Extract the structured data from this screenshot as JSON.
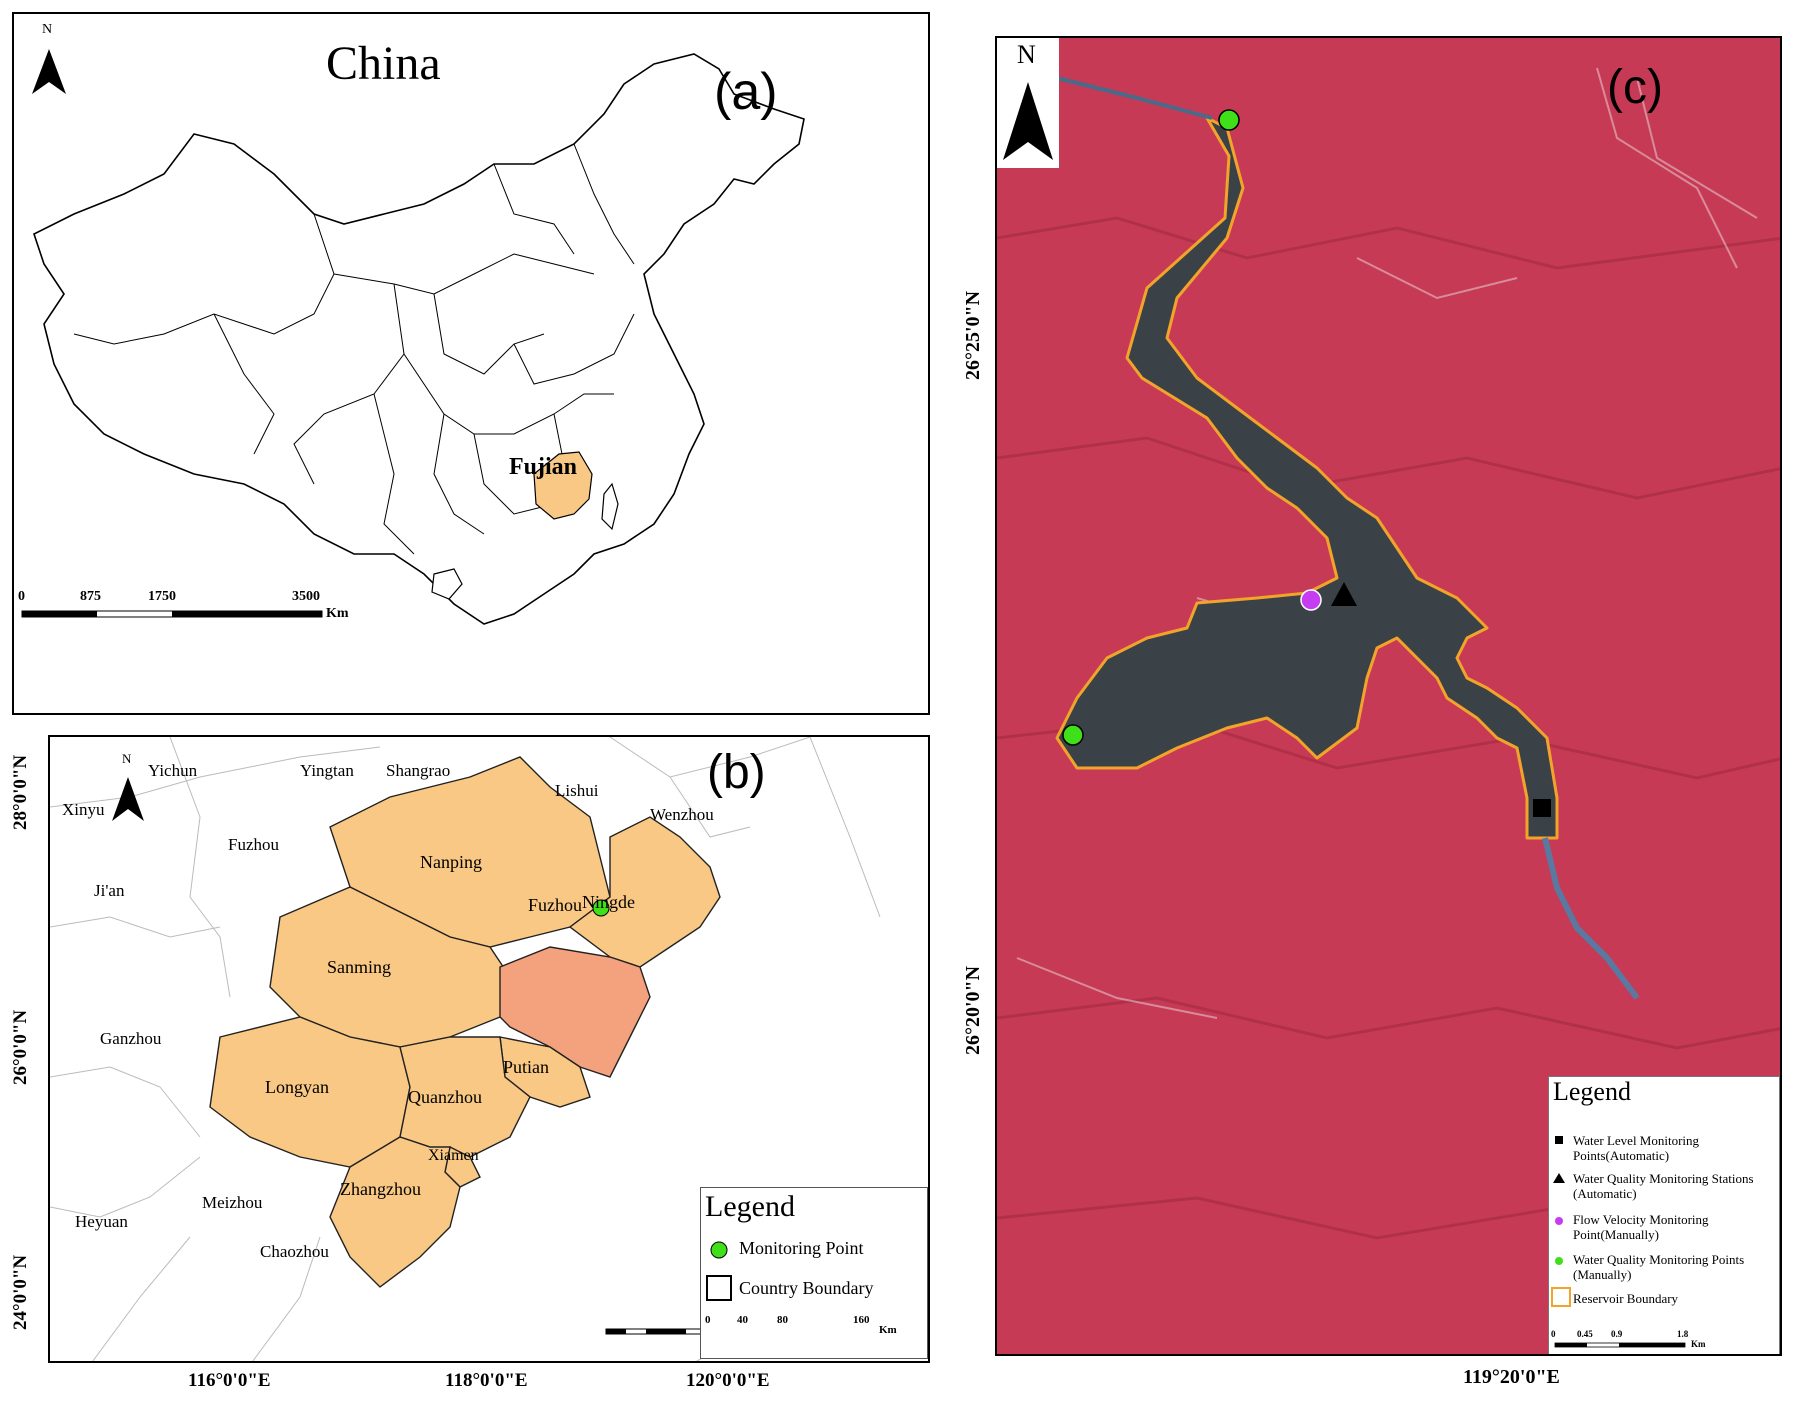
{
  "panel_a": {
    "title": "China",
    "panel_label": "(a)",
    "north_letter": "N",
    "province_label": "Fujian",
    "scale_ticks": [
      "0",
      "875",
      "1750",
      "3500"
    ],
    "scale_unit": "Km",
    "highlight_color": "#f9c884"
  },
  "panel_b": {
    "panel_label": "(b)",
    "north_letter": "N",
    "fujian_cities": [
      "Nanping",
      "Ningde",
      "Sanming",
      "Fuzhou",
      "Putian",
      "Longyan",
      "Quanzhou",
      "Xiamen",
      "Zhangzhou"
    ],
    "neighbor_cities": [
      "Yichun",
      "Yingtan",
      "Shangrao",
      "Lishui",
      "Xinyu",
      "Wenzhou",
      "Fuzhou",
      "Ji'an",
      "Ganzhou",
      "Meizhou",
      "Heyuan",
      "Chaozhou"
    ],
    "lat_labels": [
      "28°0'0\"N",
      "26°0'0\"N",
      "24°0'0\"N"
    ],
    "lon_labels": [
      "116°0'0\"E",
      "118°0'0\"E",
      "120°0'0\"E"
    ],
    "legend": {
      "title": "Legend",
      "items": [
        {
          "label": "Monitoring Point",
          "symbol": "green-circle"
        },
        {
          "label": "Country Boundary",
          "symbol": "black-square"
        }
      ]
    },
    "scale_ticks": [
      "0",
      "40",
      "80",
      "160"
    ],
    "scale_unit": "Km",
    "colors": {
      "fujian": "#f9c884",
      "fuzhou": "#f4a27e",
      "monitoring_point": "#3fe01a"
    }
  },
  "panel_c": {
    "panel_label": "(c)",
    "north_letter": "N",
    "lat_labels": [
      "26°25'0\"N",
      "26°20'0\"N"
    ],
    "lon_label": "119°20'0\"E",
    "legend": {
      "title": "Legend",
      "items": [
        {
          "label": "Water Level Monitoring Points(Automatic)",
          "symbol": "black-square"
        },
        {
          "label": "Water Quality Monitoring Stations (Automatic)",
          "symbol": "black-triangle"
        },
        {
          "label": "Flow Velocity Monitoring Point(Manually)",
          "symbol": "magenta-circle"
        },
        {
          "label": "Water Quality Monitoring Points (Manually)",
          "symbol": "green-circle"
        },
        {
          "label": "Reservoir Boundary",
          "symbol": "orange-square-outline"
        }
      ]
    },
    "scale_ticks": [
      "0",
      "0.45",
      "0.9",
      "1.8"
    ],
    "scale_unit": "Km",
    "colors": {
      "vegetation": "#c73a55",
      "water": "#3a4248",
      "boundary": "#f2a42a",
      "flow_point": "#c63cf0",
      "quality_point": "#3fe01a"
    }
  }
}
